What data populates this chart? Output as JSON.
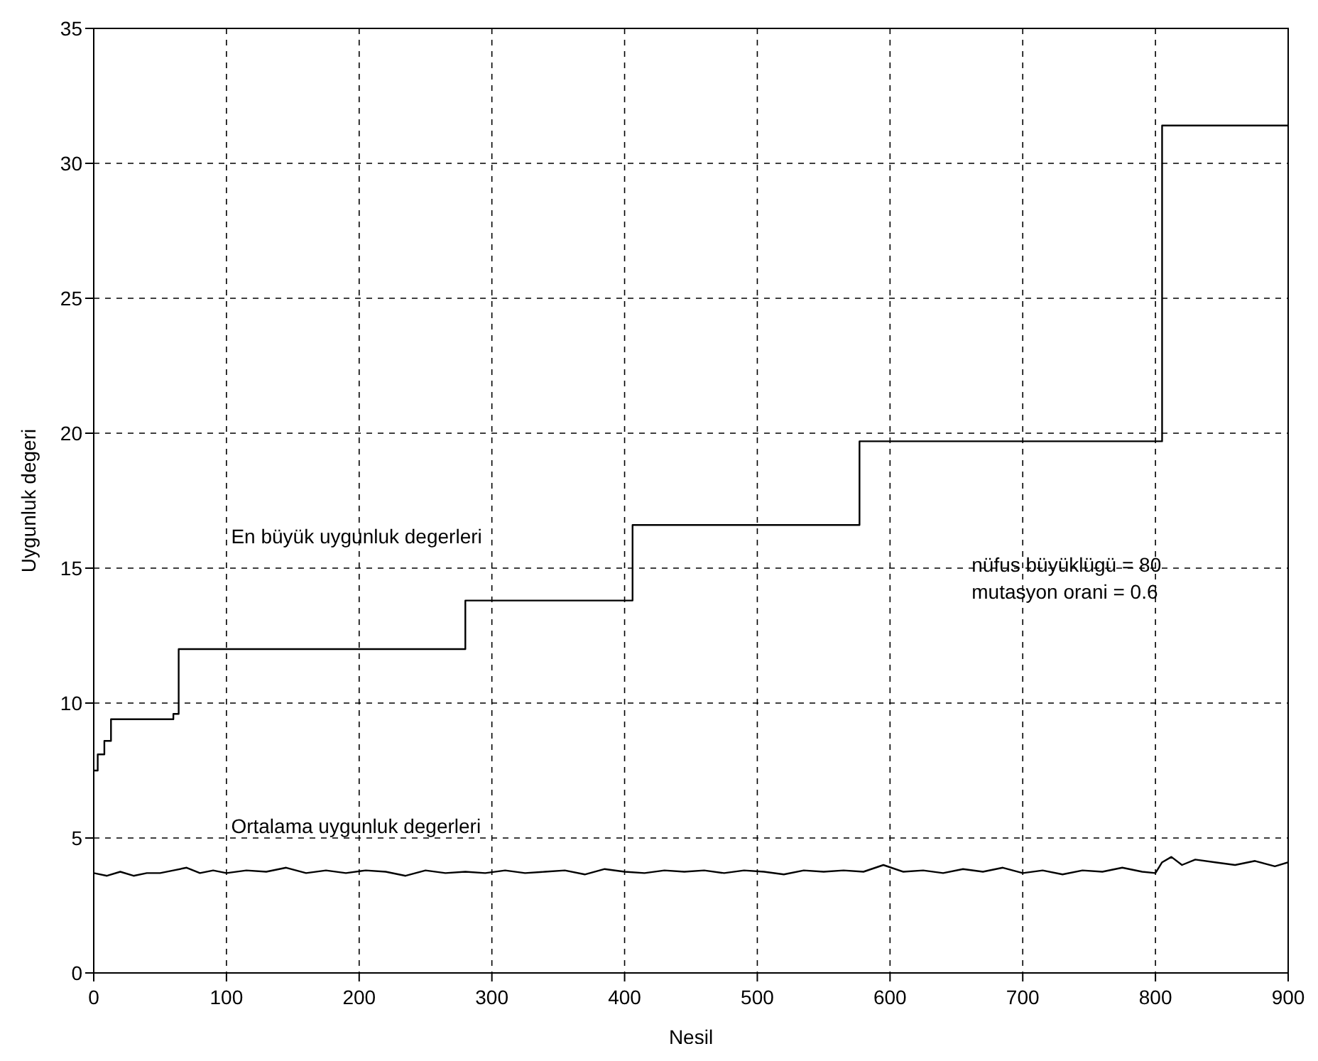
{
  "chart_data": {
    "type": "line",
    "xlabel": "Nesil",
    "ylabel": "Uygunluk degeri",
    "xlim": [
      0,
      900
    ],
    "xticks": [
      0,
      100,
      200,
      300,
      400,
      500,
      600,
      700,
      800,
      900
    ],
    "ylim": [
      0,
      35
    ],
    "yticks": [
      0,
      5,
      10,
      15,
      20,
      25,
      30,
      35
    ],
    "grid": true,
    "legend": false,
    "marker": "none",
    "line_style": "solid",
    "annotations": [
      "nüfus büyüklügü = 80",
      "mutasyon orani = 0.6"
    ],
    "series": [
      {
        "name": "En büyük uygunluk degerleri",
        "type": "step",
        "color": "#000000",
        "x": [
          0,
          3,
          8,
          13,
          60,
          64,
          280,
          406,
          577,
          805,
          900
        ],
        "values": [
          7.5,
          8.1,
          8.6,
          9.4,
          9.6,
          12.0,
          13.8,
          16.6,
          19.7,
          31.4,
          31.4
        ]
      },
      {
        "name": "Ortalama uygunluk degerleri",
        "type": "line",
        "color": "#000000",
        "x": [
          0,
          10,
          20,
          30,
          40,
          50,
          60,
          70,
          80,
          90,
          100,
          115,
          130,
          145,
          160,
          175,
          190,
          205,
          220,
          235,
          250,
          265,
          280,
          295,
          310,
          325,
          340,
          355,
          370,
          385,
          400,
          415,
          430,
          445,
          460,
          475,
          490,
          505,
          520,
          535,
          550,
          565,
          580,
          595,
          610,
          625,
          640,
          655,
          670,
          685,
          700,
          715,
          730,
          745,
          760,
          775,
          790,
          800,
          805,
          812,
          820,
          830,
          845,
          860,
          875,
          890,
          900
        ],
        "values": [
          3.7,
          3.6,
          3.75,
          3.6,
          3.7,
          3.7,
          3.8,
          3.9,
          3.7,
          3.8,
          3.7,
          3.8,
          3.75,
          3.9,
          3.7,
          3.8,
          3.7,
          3.8,
          3.75,
          3.6,
          3.8,
          3.7,
          3.75,
          3.7,
          3.8,
          3.7,
          3.75,
          3.8,
          3.65,
          3.85,
          3.75,
          3.7,
          3.8,
          3.75,
          3.8,
          3.7,
          3.8,
          3.75,
          3.65,
          3.8,
          3.75,
          3.8,
          3.75,
          4.0,
          3.75,
          3.8,
          3.7,
          3.85,
          3.75,
          3.9,
          3.7,
          3.8,
          3.65,
          3.8,
          3.75,
          3.9,
          3.75,
          3.7,
          4.1,
          4.3,
          4.0,
          4.2,
          4.1,
          4.0,
          4.15,
          3.95,
          4.1
        ]
      }
    ]
  }
}
